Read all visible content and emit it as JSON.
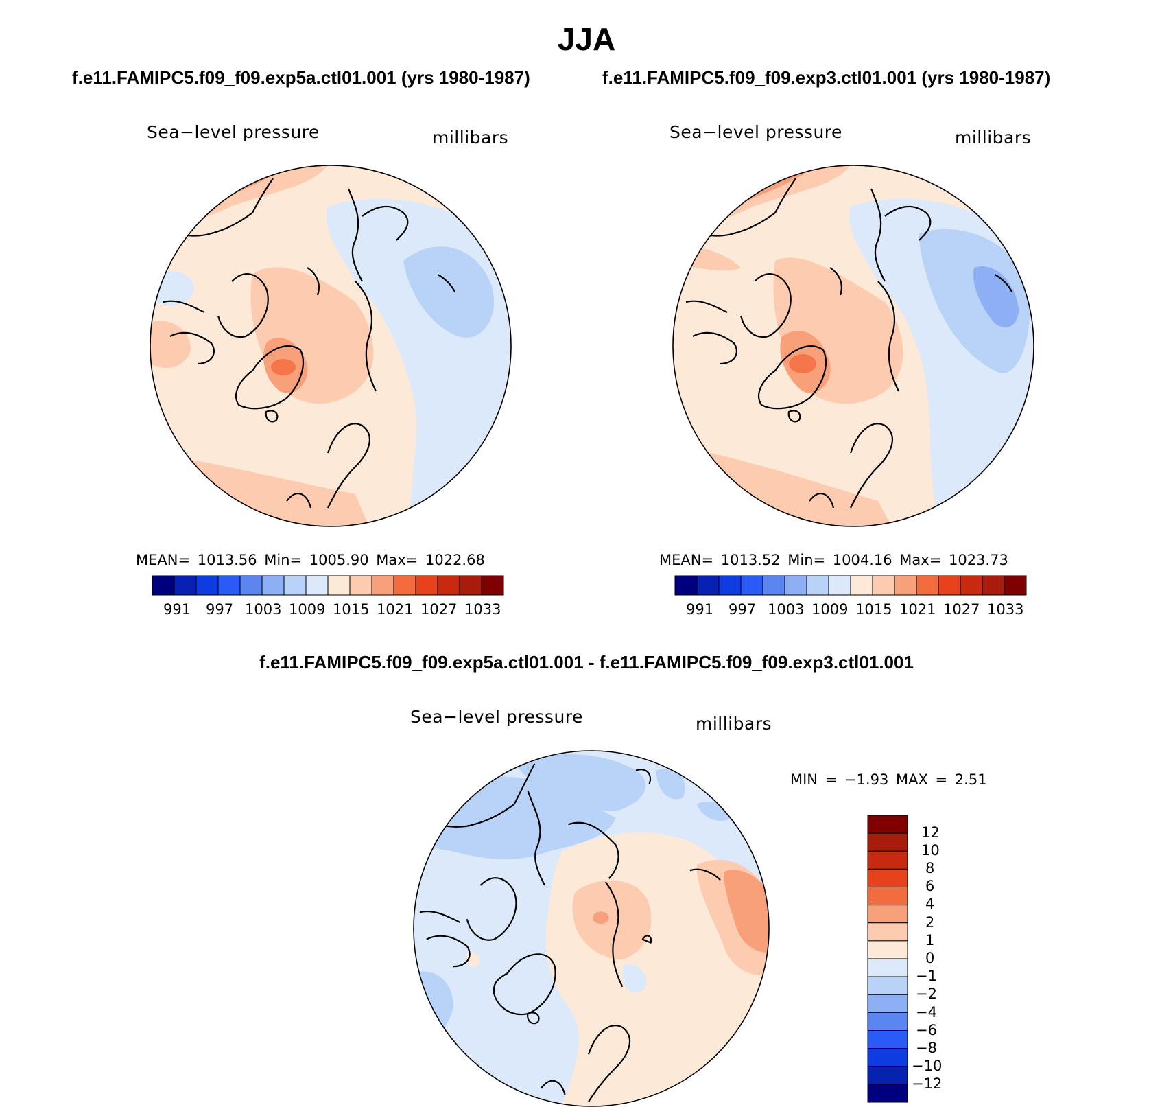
{
  "title": "JJA",
  "panels": [
    {
      "case": "f.e11.FAMIPC5.f09_f09.exp5a.ctl01.001 (yrs 1980-1987)",
      "variable": "Sea−level pressure",
      "units": "millibars",
      "stats": "MEAN=  1013.56   Min=  1005.90   Max=  1022.68",
      "colorbar_ticks": [
        "991",
        "997",
        "1003",
        "1009",
        "1015",
        "1021",
        "1027",
        "1033"
      ]
    },
    {
      "case": "f.e11.FAMIPC5.f09_f09.exp3.ctl01.001 (yrs 1980-1987)",
      "variable": "Sea−level pressure",
      "units": "millibars",
      "stats": "MEAN=  1013.52   Min=  1004.16   Max=  1023.73",
      "colorbar_ticks": [
        "991",
        "997",
        "1003",
        "1009",
        "1015",
        "1021",
        "1027",
        "1033"
      ]
    }
  ],
  "difference": {
    "title": "f.e11.FAMIPC5.f09_f09.exp5a.ctl01.001 - f.e11.FAMIPC5.f09_f09.exp3.ctl01.001",
    "variable": "Sea−level pressure",
    "units": "millibars",
    "stats": "MIN =   −1.93 MAX =    2.51",
    "colorbar_ticks": [
      "12",
      "10",
      "8",
      "6",
      "4",
      "2",
      "1",
      "0",
      "−1",
      "−2",
      "−4",
      "−6",
      "−8",
      "−10",
      "−12"
    ]
  },
  "palette": [
    "#00007f",
    "#0722b0",
    "#0f3ce0",
    "#2a5cf5",
    "#5b86f0",
    "#8db0f5",
    "#b9d2f7",
    "#dbe9fa",
    "#fde9d8",
    "#fccbb0",
    "#f8a07a",
    "#f26c3e",
    "#e6421c",
    "#c82a10",
    "#a81c0c",
    "#7f0000"
  ],
  "colors": {
    "blue_light": "#dbe9fa",
    "blue_mid": "#b9d2f7",
    "blue_dark": "#8db0f5",
    "peach_light": "#fde9d8",
    "peach": "#fccbb0",
    "salmon": "#f8a07a",
    "orange": "#f26c3e"
  }
}
